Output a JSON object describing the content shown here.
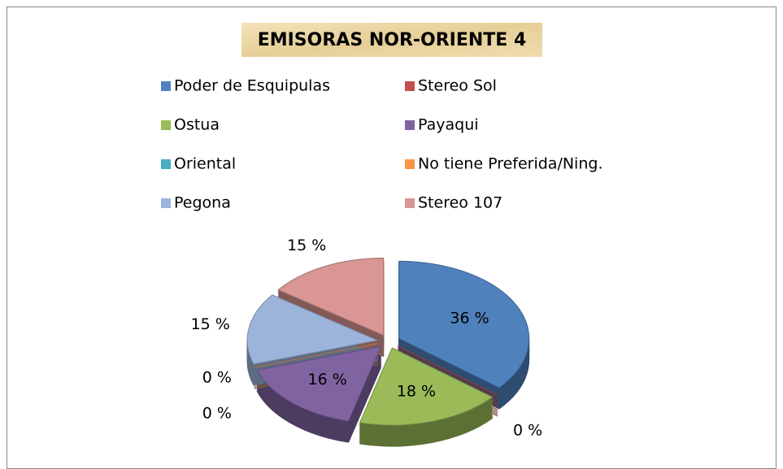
{
  "chart_data": {
    "type": "pie",
    "title": "EMISORAS NOR-ORIENTE 4",
    "categories": [
      "Poder de Esquipulas",
      "Stereo Sol",
      "Ostua",
      "Payaqui",
      "Oriental",
      "No tiene Preferida/Ning.",
      "Pegona",
      "Stereo 107"
    ],
    "values": [
      36,
      0,
      18,
      16,
      0,
      0,
      15,
      15
    ],
    "value_labels": [
      "36 %",
      "0 %",
      "18 %",
      "16 %",
      "0 %",
      "0 %",
      "15 %",
      "15 %"
    ],
    "colors": [
      "#4f81bd",
      "#c0504d",
      "#9bbb59",
      "#8064a2",
      "#4bacc6",
      "#f79646",
      "#9db4da",
      "#d99694"
    ],
    "legend": "top"
  }
}
